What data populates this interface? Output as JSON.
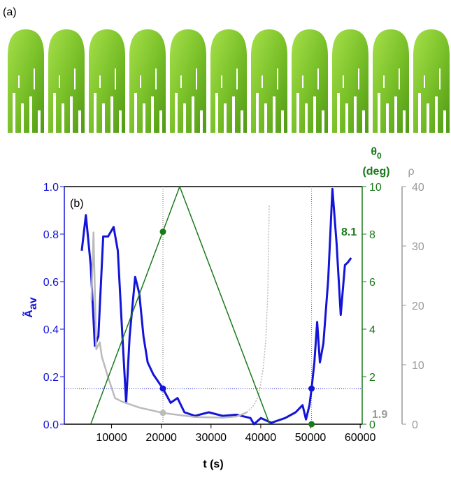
{
  "panel_a_label": "(a)",
  "chart_data": {
    "type": "line",
    "panel_label": "(b)",
    "x_label": "t (s)",
    "y_label": "Ã",
    "y_label_sub": "av",
    "y2_label": "θ",
    "y2_label_sub": "0",
    "y2_unit": "(deg)",
    "y3_label": "ρ",
    "y_color": "#1414d8",
    "y2_color": "#1a7a1a",
    "y3_color": "#999999",
    "xlim": [
      500,
      60400
    ],
    "xticks": [
      10000,
      20000,
      30000,
      40000,
      50000,
      60000
    ],
    "ylim": [
      0,
      1
    ],
    "yticks": [
      {
        "value": 0,
        "label": "0.0"
      },
      {
        "value": 0.2,
        "label": "0.2"
      },
      {
        "value": 0.4,
        "label": "0.4"
      },
      {
        "value": 0.6,
        "label": "0.6"
      },
      {
        "value": 0.8,
        "label": "0.8"
      },
      {
        "value": 1,
        "label": "1.0"
      }
    ],
    "y2lim": [
      0,
      10
    ],
    "y2ticks": [
      0,
      2,
      4,
      6,
      8,
      10
    ],
    "y3lim": [
      0,
      40
    ],
    "y3ticks": [
      0,
      10,
      20,
      30,
      40
    ],
    "hline": 0.15,
    "vlines": [
      20330,
      50220
    ],
    "series": [
      {
        "axis": "y",
        "color": "#1414d8",
        "width": 3,
        "x": [
          4000,
          4830,
          5800,
          6650,
          7350,
          8320,
          9300,
          10420,
          11250,
          12100,
          12930,
          13630,
          14750,
          15580,
          16420,
          17260,
          18380,
          20330,
          21870,
          23260,
          24660,
          26760,
          29550,
          32340,
          35140,
          37930,
          38630,
          40020,
          42120,
          44910,
          47010,
          48400,
          49100,
          49800,
          50220,
          50780,
          51340,
          51900,
          52600,
          53570,
          54410,
          55250,
          56080,
          56920,
          57480,
          58180
        ],
        "values": [
          0.73,
          0.88,
          0.67,
          0.33,
          0.37,
          0.79,
          0.79,
          0.83,
          0.73,
          0.4,
          0.09,
          0.37,
          0.62,
          0.55,
          0.37,
          0.26,
          0.21,
          0.15,
          0.09,
          0.11,
          0.05,
          0.035,
          0.05,
          0.035,
          0.04,
          0.026,
          0,
          0.026,
          0.006,
          0.026,
          0.05,
          0.08,
          0.02,
          0.08,
          0.15,
          0.26,
          0.43,
          0.26,
          0.34,
          0.61,
          0.99,
          0.76,
          0.46,
          0.67,
          0.68,
          0.7
        ]
      },
      {
        "axis": "y3",
        "color": "#bbbbbb",
        "width": 2.5,
        "x": [
          5950,
          6370,
          6920,
          7620,
          8040,
          9300,
          10700,
          12090,
          15580,
          20330,
          26760,
          32340,
          35140,
          37230
        ],
        "values": [
          20.8,
          32.3,
          12.6,
          13.8,
          11.4,
          7.9,
          4.4,
          3.8,
          2.8,
          1.9,
          1.2,
          1.1,
          1.3,
          2.0
        ]
      },
      {
        "axis": "y3",
        "color": "#bbbbbb",
        "width": 1.5,
        "dash": true,
        "x": [
          37230,
          38630,
          39600,
          40450,
          41000,
          41420,
          41700
        ],
        "values": [
          2.0,
          3.2,
          4.9,
          9.1,
          14,
          22,
          37
        ]
      },
      {
        "axis": "y2",
        "color": "#1a7a1a",
        "width": 1.5,
        "x": [
          5800,
          23700,
          41800
        ],
        "values": [
          0,
          10,
          0
        ]
      },
      {
        "axis": "y",
        "mode": "markers",
        "color": "#1414d8",
        "x": [
          20330,
          50220
        ],
        "values": [
          0.15,
          0.15
        ]
      },
      {
        "axis": "y2",
        "mode": "markers",
        "color": "#1a7a1a",
        "x": [
          20330,
          50220
        ],
        "values": [
          8.1,
          0
        ]
      },
      {
        "axis": "y3",
        "mode": "markers",
        "color": "#bbbbbb",
        "x": [
          20330
        ],
        "values": [
          1.9
        ]
      }
    ],
    "annotations": [
      {
        "text": "8.1",
        "color": "#1a7a1a"
      },
      {
        "text": "1.9",
        "color": "#999999"
      }
    ]
  }
}
